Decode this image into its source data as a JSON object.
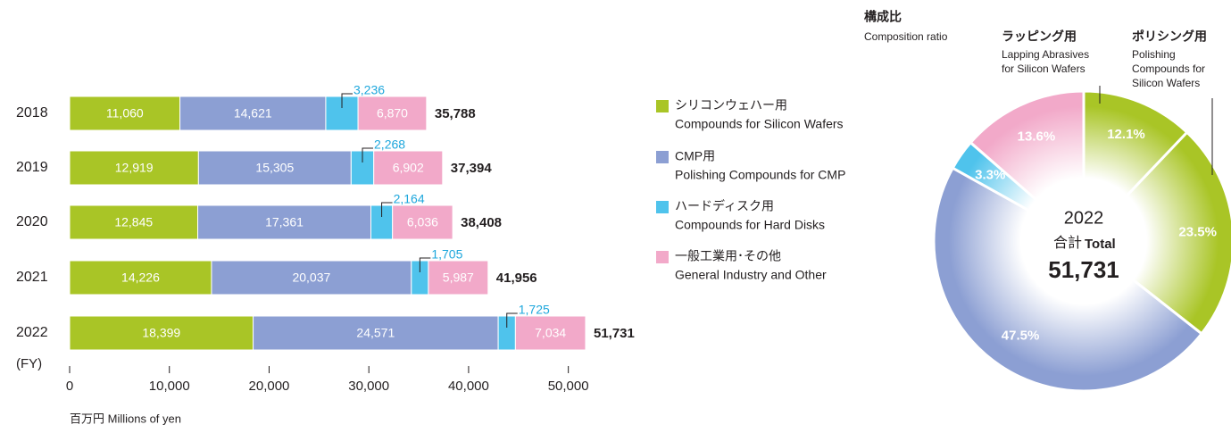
{
  "chart_data": [
    {
      "type": "stacked-barh",
      "categories": [
        "2018",
        "2019",
        "2020",
        "2021",
        "2022"
      ],
      "category_axis_label": "(FY)",
      "x_axis_label": "百万円  Millions of yen",
      "xlim": [
        0,
        52000
      ],
      "xticks": [
        0,
        {
          "value": 10000,
          "label": "10,000"
        },
        {
          "value": 20000,
          "label": "20,000"
        },
        {
          "value": 30000,
          "label": "30,000"
        },
        {
          "value": 40000,
          "label": "40,000"
        },
        {
          "value": 50000,
          "label": "50,000"
        }
      ],
      "series": [
        {
          "name": "シリコンウェハー用",
          "name_en": "Compounds for Silicon Wafers",
          "color": "#a9c526",
          "values": [
            11060,
            12919,
            12845,
            14226,
            18399
          ],
          "value_labels": [
            "11,060",
            "12,919",
            "12,845",
            "14,226",
            "18,399"
          ]
        },
        {
          "name": "CMP用",
          "name_en": "Polishing Compounds for CMP",
          "color": "#8c9fd3",
          "values": [
            14621,
            15305,
            17361,
            20037,
            24571
          ],
          "value_labels": [
            "14,621",
            "15,305",
            "17,361",
            "20,037",
            "24,571"
          ]
        },
        {
          "name": "ハードディスク用",
          "name_en": "Compounds for Hard Disks",
          "color": "#4fc3ec",
          "values": [
            3236,
            2268,
            2164,
            1705,
            1725
          ],
          "value_labels": [
            "3,236",
            "2,268",
            "2,164",
            "1,705",
            "1,725"
          ]
        },
        {
          "name": "一般工業用･その他",
          "name_en": "General Industry and Other",
          "color": "#f2a9c9",
          "values": [
            6870,
            6902,
            6036,
            5987,
            7034
          ],
          "value_labels": [
            "6,870",
            "6,902",
            "6,036",
            "5,987",
            "7,034"
          ]
        }
      ],
      "totals": [
        35788,
        37394,
        38408,
        41956,
        51731
      ],
      "total_labels": [
        "35,788",
        "37,394",
        "38,408",
        "41,956",
        "51,731"
      ]
    },
    {
      "type": "donut",
      "title": "構成比",
      "subtitle": "Composition ratio",
      "center_lines": [
        "2022",
        "合計",
        "Total",
        "51,731"
      ],
      "categories": [
        "ラッピング用",
        "ポリシング用",
        null,
        null,
        null
      ],
      "categories_en": [
        [
          "Lapping Abrasives",
          "for Silicon Wafers"
        ],
        [
          "Polishing",
          "Compounds for",
          "Silicon Wafers"
        ],
        null,
        null,
        null
      ],
      "values": [
        12.1,
        23.5,
        47.5,
        3.3,
        13.6
      ],
      "value_labels": [
        "12.1%",
        "23.5%",
        "47.5%",
        "3.3%",
        "13.6%"
      ],
      "colors": [
        "#a9c526",
        "#a9c526",
        "#8c9fd3",
        "#4fc3ec",
        "#f2a9c9"
      ]
    }
  ]
}
